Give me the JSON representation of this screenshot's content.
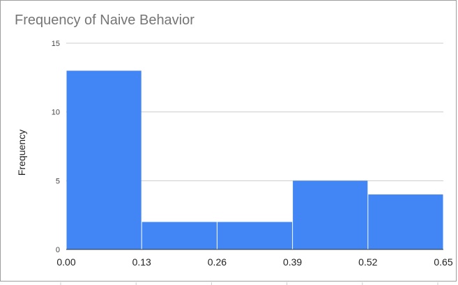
{
  "chart_data": {
    "type": "bar",
    "title": "Frequency of Naive Behavior",
    "xlabel": "",
    "ylabel": "Frequency",
    "x_ticks": [
      "0.00",
      "0.13",
      "0.26",
      "0.39",
      "0.52",
      "0.65"
    ],
    "bins": [
      {
        "from": 0.0,
        "to": 0.13,
        "value": 13
      },
      {
        "from": 0.13,
        "to": 0.26,
        "value": 2
      },
      {
        "from": 0.26,
        "to": 0.39,
        "value": 2
      },
      {
        "from": 0.39,
        "to": 0.52,
        "value": 5
      },
      {
        "from": 0.52,
        "to": 0.65,
        "value": 4
      }
    ],
    "y_ticks": [
      "0",
      "5",
      "10",
      "15"
    ],
    "ylim": [
      0,
      15
    ],
    "xlim": [
      0,
      0.65
    ],
    "grid": true,
    "bar_color": "#4285f4",
    "gridline_color": "#cccccc"
  }
}
